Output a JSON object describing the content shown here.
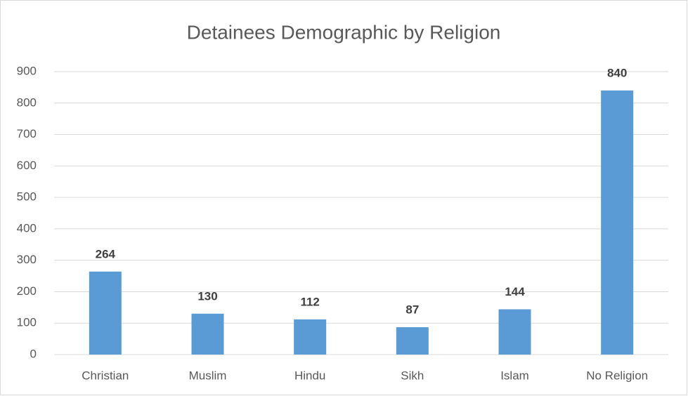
{
  "chart_data": {
    "type": "bar",
    "title": "Detainees Demographic by Religion",
    "categories": [
      "Christian",
      "Muslim",
      "Hindu",
      "Sikh",
      "Islam",
      "No Religion"
    ],
    "values": [
      264,
      130,
      112,
      87,
      144,
      840
    ],
    "color": "#5b9bd5",
    "ylim": [
      0,
      900
    ],
    "yticks": [
      0,
      100,
      200,
      300,
      400,
      500,
      600,
      700,
      800,
      900
    ],
    "grid": true
  }
}
